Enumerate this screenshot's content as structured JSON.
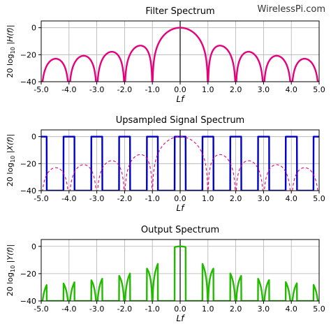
{
  "watermark": "WirelessPi.com",
  "chart_data": [
    {
      "type": "line",
      "title": "Filter Spectrum",
      "xlabel": "Lf",
      "ylabel": "20 log10 |H(f)|",
      "xlim": [
        -5.0,
        5.0
      ],
      "ylim": [
        -40,
        5
      ],
      "xticks": [
        "-5.0",
        "-4.0",
        "-3.0",
        "-2.0",
        "-1.0",
        "0.0",
        "1.0",
        "2.0",
        "3.0",
        "4.0",
        "5.0"
      ],
      "yticks": [
        "0",
        "-20",
        "-40"
      ],
      "grid": true,
      "series": [
        {
          "color": "#e6007e",
          "style": "solid",
          "description": "sinc magnitude in dB: 20*log10|sin(pi x)/(pi x)|, nulls at every nonzero integer",
          "key_points": {
            "x": [
              0,
              1.5,
              2.5,
              3.5,
              4.5
            ],
            "y": [
              0,
              -13.5,
              -17.9,
              -20.8,
              -23.0
            ]
          }
        }
      ]
    },
    {
      "type": "line",
      "title": "Upsampled Signal Spectrum",
      "xlabel": "Lf",
      "ylabel": "20 log10 |X(f)|",
      "xlim": [
        -5.0,
        5.0
      ],
      "ylim": [
        -40,
        5
      ],
      "xticks": [
        "-5.0",
        "-4.0",
        "-3.0",
        "-2.0",
        "-1.0",
        "0.0",
        "1.0",
        "2.0",
        "3.0",
        "4.0",
        "5.0"
      ],
      "yticks": [
        "0",
        "-20",
        "-40"
      ],
      "grid": true,
      "series": [
        {
          "color": "#0000cc",
          "style": "solid",
          "description": "spectral images at 0 dB centred on every integer, width 0.4, -40 dB elsewhere",
          "pulse_centers": [
            -5,
            -4,
            -3,
            -2,
            -1,
            0,
            1,
            2,
            3,
            4,
            5
          ],
          "pulse_width": 0.4,
          "top": 0,
          "floor": -40
        },
        {
          "color": "#e6007e",
          "style": "dashed",
          "description": "filter spectrum overlay (same as top panel)"
        }
      ]
    },
    {
      "type": "line",
      "title": "Output Spectrum",
      "xlabel": "Lf",
      "ylabel": "20 log10 |Y(f)|",
      "xlim": [
        -5.0,
        5.0
      ],
      "ylim": [
        -40,
        5
      ],
      "xticks": [
        "-5.0",
        "-4.0",
        "-3.0",
        "-2.0",
        "-1.0",
        "0.0",
        "1.0",
        "2.0",
        "3.0",
        "4.0",
        "5.0"
      ],
      "yticks": [
        "0",
        "-20",
        "-40"
      ],
      "grid": true,
      "series": [
        {
          "color": "#22bb00",
          "style": "solid",
          "description": "upsampled spectrum multiplied by filter: main lobe at 0, attenuated images near integers",
          "image_peaks_db": {
            "x": [
              -4.8,
              -3.8,
              -2.8,
              -1.8,
              -0.8,
              0,
              0.8,
              1.8,
              2.8,
              3.8,
              4.8
            ],
            "y": [
              -26,
              -24,
              -22,
              -19,
              -14,
              0,
              -14,
              -19,
              -22,
              -24,
              -26
            ]
          }
        }
      ]
    }
  ]
}
